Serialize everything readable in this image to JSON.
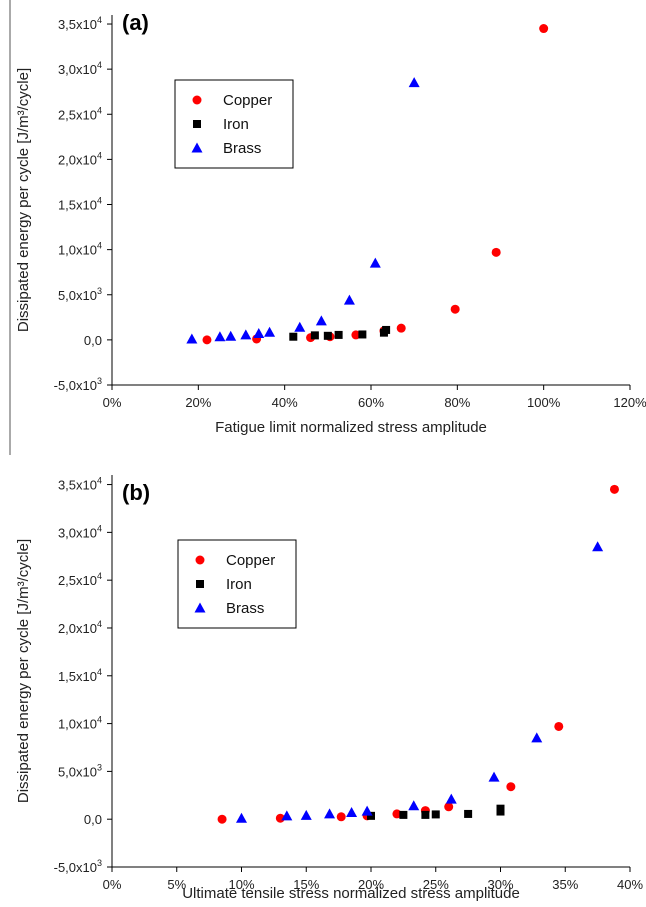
{
  "colors": {
    "copper": "#ff0000",
    "iron": "#000000",
    "brass": "#0000ff"
  },
  "chart_data": [
    {
      "type": "scatter",
      "panel_label": "(a)",
      "xlabel": "Fatigue limit normalized stress amplitude",
      "ylabel": "Dissipated energy per cycle [J/m³/cycle]",
      "xlim": [
        0,
        120
      ],
      "ylim": [
        -5000,
        36000
      ],
      "x_ticks": [
        {
          "value": 0,
          "label": "0%"
        },
        {
          "value": 20,
          "label": "20%"
        },
        {
          "value": 40,
          "label": "40%"
        },
        {
          "value": 60,
          "label": "60%"
        },
        {
          "value": 80,
          "label": "80%"
        },
        {
          "value": 100,
          "label": "100%"
        },
        {
          "value": 120,
          "label": "120%"
        }
      ],
      "y_ticks": [
        {
          "value": -5000,
          "mant": "-5,0x10",
          "exp": "3"
        },
        {
          "value": 0,
          "mant": "0,0",
          "exp": ""
        },
        {
          "value": 5000,
          "mant": "5,0x10",
          "exp": "3"
        },
        {
          "value": 10000,
          "mant": "1,0x10",
          "exp": "4"
        },
        {
          "value": 15000,
          "mant": "1,5x10",
          "exp": "4"
        },
        {
          "value": 20000,
          "mant": "2,0x10",
          "exp": "4"
        },
        {
          "value": 25000,
          "mant": "2,5x10",
          "exp": "4"
        },
        {
          "value": 30000,
          "mant": "3,0x10",
          "exp": "4"
        },
        {
          "value": 35000,
          "mant": "3,5x10",
          "exp": "4"
        }
      ],
      "legend_position": "upper-left",
      "series": [
        {
          "name": "Copper",
          "marker": "circle",
          "points": [
            [
              22,
              0
            ],
            [
              33.5,
              100
            ],
            [
              46,
              250
            ],
            [
              50.5,
              350
            ],
            [
              56.5,
              550
            ],
            [
              63,
              1000
            ],
            [
              67,
              1300
            ],
            [
              79.5,
              3400
            ],
            [
              89,
              9700
            ],
            [
              100,
              34500
            ]
          ]
        },
        {
          "name": "Iron",
          "marker": "square",
          "points": [
            [
              42,
              350
            ],
            [
              47,
              500
            ],
            [
              50,
              450
            ],
            [
              52.5,
              550
            ],
            [
              58,
              600
            ],
            [
              63,
              800
            ],
            [
              63.5,
              1100
            ]
          ]
        },
        {
          "name": "Brass",
          "marker": "triangle",
          "points": [
            [
              18.5,
              100
            ],
            [
              25,
              350
            ],
            [
              27.5,
              400
            ],
            [
              31,
              550
            ],
            [
              34,
              700
            ],
            [
              36.5,
              850
            ],
            [
              43.5,
              1400
            ],
            [
              48.5,
              2100
            ],
            [
              55,
              4400
            ],
            [
              61,
              8500
            ],
            [
              70,
              28500
            ]
          ]
        }
      ]
    },
    {
      "type": "scatter",
      "panel_label": "(b)",
      "xlabel": "Ultimate tensile stress normalized stress amplitude",
      "ylabel": "Dissipated energy per cycle [J/m³/cycle]",
      "xlim": [
        0,
        40
      ],
      "ylim": [
        -5000,
        36000
      ],
      "x_ticks": [
        {
          "value": 0,
          "label": "0%"
        },
        {
          "value": 5,
          "label": "5%"
        },
        {
          "value": 10,
          "label": "10%"
        },
        {
          "value": 15,
          "label": "15%"
        },
        {
          "value": 20,
          "label": "20%"
        },
        {
          "value": 25,
          "label": "25%"
        },
        {
          "value": 30,
          "label": "30%"
        },
        {
          "value": 35,
          "label": "35%"
        },
        {
          "value": 40,
          "label": "40%"
        }
      ],
      "y_ticks": [
        {
          "value": -5000,
          "mant": "-5,0x10",
          "exp": "3"
        },
        {
          "value": 0,
          "mant": "0,0",
          "exp": ""
        },
        {
          "value": 5000,
          "mant": "5,0x10",
          "exp": "3"
        },
        {
          "value": 10000,
          "mant": "1,0x10",
          "exp": "4"
        },
        {
          "value": 15000,
          "mant": "1,5x10",
          "exp": "4"
        },
        {
          "value": 20000,
          "mant": "2,0x10",
          "exp": "4"
        },
        {
          "value": 25000,
          "mant": "2,5x10",
          "exp": "4"
        },
        {
          "value": 30000,
          "mant": "3,0x10",
          "exp": "4"
        },
        {
          "value": 35000,
          "mant": "3,5x10",
          "exp": "4"
        }
      ],
      "legend_position": "upper-left",
      "series": [
        {
          "name": "Copper",
          "marker": "circle",
          "points": [
            [
              8.5,
              0
            ],
            [
              13,
              100
            ],
            [
              17.7,
              250
            ],
            [
              19.7,
              350
            ],
            [
              22,
              550
            ],
            [
              24.2,
              900
            ],
            [
              26,
              1300
            ],
            [
              30.8,
              3400
            ],
            [
              34.5,
              9700
            ],
            [
              38.8,
              34500
            ]
          ]
        },
        {
          "name": "Iron",
          "marker": "square",
          "points": [
            [
              20,
              350
            ],
            [
              22.5,
              450
            ],
            [
              24.2,
              450
            ],
            [
              25,
              500
            ],
            [
              27.5,
              550
            ],
            [
              30,
              800
            ],
            [
              30,
              1100
            ]
          ]
        },
        {
          "name": "Brass",
          "marker": "triangle",
          "points": [
            [
              10,
              100
            ],
            [
              13.5,
              350
            ],
            [
              15,
              400
            ],
            [
              16.8,
              550
            ],
            [
              18.5,
              700
            ],
            [
              19.7,
              850
            ],
            [
              23.3,
              1400
            ],
            [
              26.2,
              2100
            ],
            [
              29.5,
              4400
            ],
            [
              32.8,
              8500
            ],
            [
              37.5,
              28500
            ]
          ]
        }
      ]
    }
  ]
}
